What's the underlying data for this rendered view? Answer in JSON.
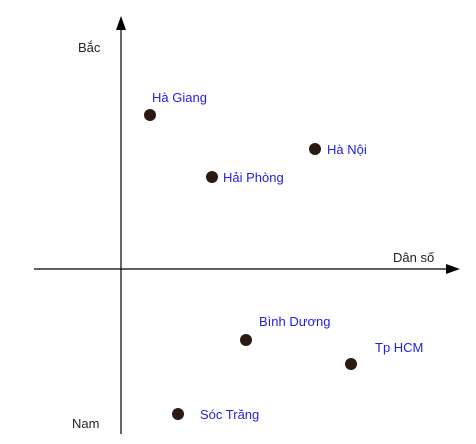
{
  "axes": {
    "north_label": "Bắc",
    "south_label": "Nam",
    "population_label": "Dân số"
  },
  "points": [
    {
      "id": "ha-giang",
      "label": "Hà Giang"
    },
    {
      "id": "ha-noi",
      "label": "Hà Nội"
    },
    {
      "id": "hai-phong",
      "label": "Hải Phòng"
    },
    {
      "id": "binh-duong",
      "label": "Bình Dương"
    },
    {
      "id": "tp-hcm",
      "label": "Tp HCM"
    },
    {
      "id": "soc-trang",
      "label": "Sóc Trăng"
    }
  ],
  "colors": {
    "axis": "#000000",
    "axis_text": "#222222",
    "point_fill": "#2b1a12",
    "label": "#1f1fdc"
  }
}
